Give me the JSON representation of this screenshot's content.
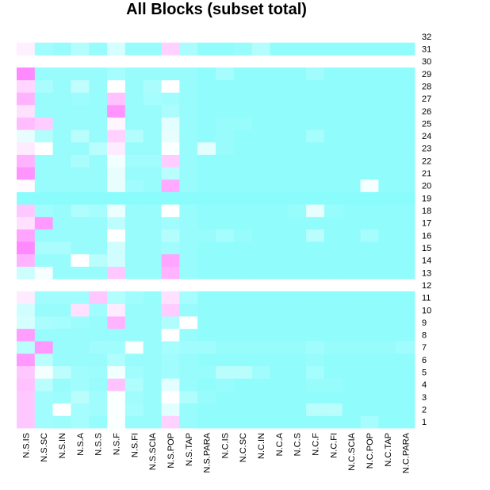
{
  "chart_data": {
    "type": "heatmap",
    "title": "All Blocks (subset total)",
    "xlabel": "",
    "ylabel": "",
    "x_categories": [
      "N.S.IS",
      "N.S.SC",
      "N.S.IN",
      "N.S.A",
      "N.S.S",
      "N.S.F",
      "N.S.FI",
      "N.S.SCIA",
      "N.S.POP",
      "N.S.TAP",
      "N.S.PARA",
      "N.C.IS",
      "N.C.SC",
      "N.C.IN",
      "N.C.A",
      "N.C.S",
      "N.C.F",
      "N.C.FI",
      "N.C.SCIA",
      "N.C.POP",
      "N.C.TAP",
      "N.C.PARA"
    ],
    "y_categories": [
      "1",
      "2",
      "3",
      "4",
      "5",
      "6",
      "7",
      "8",
      "9",
      "10",
      "11",
      "12",
      "13",
      "14",
      "15",
      "16",
      "17",
      "18",
      "19",
      "20",
      "21",
      "22",
      "23",
      "24",
      "25",
      "26",
      "27",
      "28",
      "29",
      "30",
      "31",
      "32"
    ],
    "value_scale": "0 = cyan (low), 1 = magenta (high); empty rows are blank",
    "colors": {
      "low": "#8afcfc",
      "mid": "#ffffff",
      "high": "#ff80ff"
    },
    "grid": false,
    "legend": "none",
    "rows": {
      "1": [
        0.72,
        0.1,
        0.08,
        0.12,
        0.05,
        0.48,
        0.06,
        0.06,
        0.68,
        0.06,
        0.03,
        0.03,
        0.03,
        0.03,
        0.03,
        0.03,
        0.03,
        0.03,
        0.03,
        0.12,
        0.03,
        0.03
      ],
      "2": [
        0.72,
        0.1,
        0.5,
        0.12,
        0.1,
        0.48,
        0.12,
        0.06,
        0.38,
        0.06,
        0.03,
        0.03,
        0.03,
        0.03,
        0.03,
        0.03,
        0.2,
        0.2,
        0.03,
        0.03,
        0.03,
        0.03
      ],
      "3": [
        0.72,
        0.1,
        0.08,
        0.2,
        0.1,
        0.48,
        0.1,
        0.06,
        0.5,
        0.16,
        0.06,
        0.03,
        0.03,
        0.03,
        0.03,
        0.03,
        0.03,
        0.03,
        0.03,
        0.03,
        0.03,
        0.03
      ],
      "4": [
        0.74,
        0.2,
        0.06,
        0.1,
        0.06,
        0.74,
        0.16,
        0.06,
        0.38,
        0.06,
        0.03,
        0.06,
        0.03,
        0.03,
        0.03,
        0.03,
        0.06,
        0.06,
        0.03,
        0.03,
        0.03,
        0.03
      ],
      "5": [
        0.72,
        0.45,
        0.22,
        0.1,
        0.08,
        0.44,
        0.1,
        0.06,
        0.1,
        0.06,
        0.06,
        0.2,
        0.2,
        0.1,
        0.03,
        0.03,
        0.12,
        0.03,
        0.03,
        0.03,
        0.03,
        0.03
      ],
      "6": [
        0.9,
        0.2,
        0.06,
        0.06,
        0.06,
        0.16,
        0.06,
        0.06,
        0.1,
        0.06,
        0.03,
        0.03,
        0.03,
        0.03,
        0.03,
        0.03,
        0.06,
        0.03,
        0.03,
        0.03,
        0.03,
        0.03
      ],
      "7": [
        0.2,
        0.9,
        0.06,
        0.06,
        0.1,
        0.1,
        0.48,
        0.06,
        0.12,
        0.1,
        0.1,
        0.06,
        0.06,
        0.06,
        0.06,
        0.06,
        0.1,
        0.06,
        0.06,
        0.06,
        0.06,
        0.1
      ],
      "8": [
        0.88,
        0.06,
        0.06,
        0.06,
        0.06,
        0.06,
        0.06,
        0.06,
        0.5,
        0.06,
        0.03,
        0.03,
        0.03,
        0.03,
        0.03,
        0.03,
        0.03,
        0.03,
        0.03,
        0.03,
        0.03,
        0.03
      ],
      "9": [
        0.32,
        0.14,
        0.12,
        0.08,
        0.06,
        0.8,
        0.06,
        0.06,
        0.16,
        0.5,
        0.03,
        0.03,
        0.03,
        0.03,
        0.03,
        0.03,
        0.03,
        0.03,
        0.03,
        0.03,
        0.03,
        0.03
      ],
      "10": [
        0.3,
        0.06,
        0.06,
        0.62,
        0.1,
        0.58,
        0.06,
        0.06,
        0.7,
        0.06,
        0.03,
        0.03,
        0.03,
        0.03,
        0.03,
        0.03,
        0.03,
        0.03,
        0.03,
        0.03,
        0.03,
        0.03
      ],
      "11": [
        0.58,
        0.1,
        0.1,
        0.1,
        0.72,
        0.18,
        0.1,
        0.06,
        0.62,
        0.12,
        0.03,
        0.03,
        0.03,
        0.03,
        0.03,
        0.03,
        0.03,
        0.03,
        0.03,
        0.03,
        0.03,
        0.03
      ],
      "13": [
        0.28,
        0.46,
        0.06,
        0.06,
        0.06,
        0.72,
        0.06,
        0.06,
        0.8,
        0.06,
        0.03,
        0.03,
        0.03,
        0.03,
        0.03,
        0.03,
        0.03,
        0.03,
        0.03,
        0.03,
        0.03,
        0.03
      ],
      "14": [
        0.8,
        0.06,
        0.06,
        0.5,
        0.2,
        0.3,
        0.06,
        0.06,
        0.86,
        0.06,
        0.03,
        0.03,
        0.03,
        0.03,
        0.03,
        0.03,
        0.03,
        0.03,
        0.03,
        0.03,
        0.03,
        0.03
      ],
      "15": [
        0.96,
        0.14,
        0.14,
        0.06,
        0.06,
        0.3,
        0.06,
        0.06,
        0.1,
        0.06,
        0.03,
        0.03,
        0.03,
        0.03,
        0.03,
        0.03,
        0.03,
        0.03,
        0.03,
        0.03,
        0.03,
        0.03
      ],
      "16": [
        0.86,
        0.06,
        0.06,
        0.06,
        0.06,
        0.5,
        0.06,
        0.06,
        0.18,
        0.06,
        0.06,
        0.12,
        0.06,
        0.03,
        0.03,
        0.03,
        0.2,
        0.03,
        0.03,
        0.12,
        0.03,
        0.03
      ],
      "17": [
        0.62,
        0.9,
        0.06,
        0.06,
        0.06,
        0.22,
        0.06,
        0.06,
        0.1,
        0.06,
        0.03,
        0.03,
        0.03,
        0.03,
        0.03,
        0.03,
        0.03,
        0.03,
        0.03,
        0.03,
        0.03,
        0.03
      ],
      "18": [
        0.72,
        0.1,
        0.06,
        0.16,
        0.12,
        0.42,
        0.06,
        0.06,
        0.5,
        0.06,
        0.03,
        0.03,
        0.03,
        0.03,
        0.03,
        0.06,
        0.4,
        0.06,
        0.03,
        0.03,
        0.03,
        0.03
      ],
      "19": [
        0.0,
        0.0,
        0.0,
        0.0,
        0.0,
        0.0,
        0.0,
        0.0,
        0.0,
        0.0,
        0.0,
        0.0,
        0.0,
        0.0,
        0.0,
        0.0,
        0.0,
        0.0,
        0.0,
        0.0,
        0.0,
        0.0
      ],
      "20": [
        0.52,
        0.06,
        0.06,
        0.06,
        0.06,
        0.4,
        0.1,
        0.06,
        0.84,
        0.06,
        0.03,
        0.03,
        0.03,
        0.03,
        0.03,
        0.03,
        0.03,
        0.03,
        0.03,
        0.46,
        0.03,
        0.03
      ],
      "21": [
        0.92,
        0.06,
        0.06,
        0.06,
        0.06,
        0.4,
        0.06,
        0.06,
        0.2,
        0.06,
        0.03,
        0.03,
        0.03,
        0.03,
        0.03,
        0.03,
        0.03,
        0.03,
        0.03,
        0.03,
        0.03,
        0.03
      ],
      "22": [
        0.8,
        0.06,
        0.06,
        0.14,
        0.06,
        0.44,
        0.1,
        0.1,
        0.7,
        0.06,
        0.03,
        0.03,
        0.03,
        0.03,
        0.03,
        0.03,
        0.03,
        0.03,
        0.03,
        0.03,
        0.03,
        0.03
      ],
      "23": [
        0.58,
        0.5,
        0.06,
        0.06,
        0.2,
        0.58,
        0.06,
        0.06,
        0.48,
        0.06,
        0.38,
        0.06,
        0.03,
        0.03,
        0.03,
        0.03,
        0.03,
        0.03,
        0.03,
        0.03,
        0.03,
        0.03
      ],
      "24": [
        0.4,
        0.18,
        0.06,
        0.2,
        0.06,
        0.68,
        0.18,
        0.06,
        0.4,
        0.06,
        0.03,
        0.06,
        0.03,
        0.03,
        0.03,
        0.03,
        0.12,
        0.03,
        0.03,
        0.03,
        0.03,
        0.03
      ],
      "25": [
        0.76,
        0.7,
        0.06,
        0.06,
        0.06,
        0.54,
        0.06,
        0.06,
        0.38,
        0.06,
        0.03,
        0.06,
        0.06,
        0.03,
        0.03,
        0.03,
        0.03,
        0.03,
        0.03,
        0.03,
        0.03,
        0.03
      ],
      "26": [
        0.62,
        0.06,
        0.06,
        0.06,
        0.06,
        0.92,
        0.06,
        0.06,
        0.14,
        0.06,
        0.03,
        0.03,
        0.03,
        0.03,
        0.03,
        0.03,
        0.03,
        0.03,
        0.03,
        0.03,
        0.03,
        0.03
      ],
      "27": [
        0.8,
        0.06,
        0.06,
        0.08,
        0.06,
        0.74,
        0.06,
        0.12,
        0.1,
        0.06,
        0.03,
        0.03,
        0.03,
        0.03,
        0.03,
        0.03,
        0.03,
        0.03,
        0.03,
        0.03,
        0.03,
        0.03
      ],
      "28": [
        0.66,
        0.14,
        0.06,
        0.24,
        0.06,
        0.5,
        0.06,
        0.14,
        0.5,
        0.06,
        0.03,
        0.03,
        0.03,
        0.03,
        0.03,
        0.03,
        0.03,
        0.03,
        0.03,
        0.03,
        0.03,
        0.03
      ],
      "29": [
        0.96,
        0.06,
        0.06,
        0.06,
        0.06,
        0.12,
        0.06,
        0.06,
        0.06,
        0.06,
        0.03,
        0.12,
        0.03,
        0.03,
        0.03,
        0.03,
        0.1,
        0.03,
        0.03,
        0.03,
        0.03,
        0.03
      ],
      "31": [
        0.56,
        0.1,
        0.06,
        0.18,
        0.06,
        0.32,
        0.06,
        0.06,
        0.68,
        0.14,
        0.03,
        0.03,
        0.06,
        0.18,
        0.03,
        0.03,
        0.03,
        0.03,
        0.03,
        0.03,
        0.03,
        0.03
      ]
    }
  }
}
